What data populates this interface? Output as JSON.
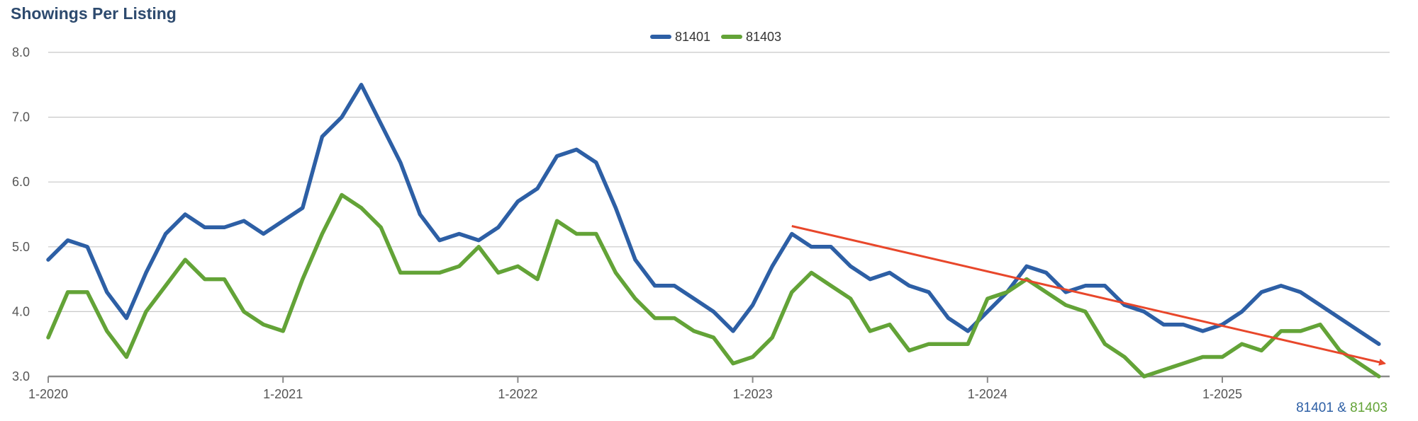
{
  "chart_data": {
    "type": "line",
    "title": "Showings Per Listing",
    "xlabel": "",
    "ylabel": "",
    "ylim": [
      3.0,
      8.0
    ],
    "yticks": [
      "3.0",
      "4.0",
      "5.0",
      "6.0",
      "7.0",
      "8.0"
    ],
    "xticks": [
      "1-2020",
      "1-2021",
      "1-2022",
      "1-2023",
      "1-2024",
      "1-2025"
    ],
    "xrange_months": [
      0,
      68
    ],
    "grid": true,
    "legend_position": "top-center",
    "series": [
      {
        "name": "81401",
        "color": "#2d5fa5",
        "values": [
          4.8,
          5.1,
          5.0,
          4.3,
          3.9,
          4.6,
          5.2,
          5.5,
          5.3,
          5.3,
          5.4,
          5.2,
          5.4,
          5.6,
          6.7,
          7.0,
          7.5,
          6.9,
          6.3,
          5.5,
          5.1,
          5.2,
          5.1,
          5.3,
          5.7,
          5.9,
          6.4,
          6.5,
          6.3,
          5.6,
          4.8,
          4.4,
          4.4,
          4.2,
          4.0,
          3.7,
          4.1,
          4.7,
          5.2,
          5.0,
          5.0,
          4.7,
          4.5,
          4.6,
          4.4,
          4.3,
          3.9,
          3.7,
          4.0,
          4.3,
          4.7,
          4.6,
          4.3,
          4.4,
          4.4,
          4.1,
          4.0,
          3.8,
          3.8,
          3.7,
          3.8,
          4.0,
          4.3,
          4.4,
          4.3,
          4.1,
          3.9,
          3.7,
          3.5
        ]
      },
      {
        "name": "81403",
        "color": "#63a337",
        "values": [
          3.6,
          4.3,
          4.3,
          3.7,
          3.3,
          4.0,
          4.4,
          4.8,
          4.5,
          4.5,
          4.0,
          3.8,
          3.7,
          4.5,
          5.2,
          5.8,
          5.6,
          5.3,
          4.6,
          4.6,
          4.6,
          4.7,
          5.0,
          4.6,
          4.7,
          4.5,
          5.4,
          5.2,
          5.2,
          4.6,
          4.2,
          3.9,
          3.9,
          3.7,
          3.6,
          3.2,
          3.3,
          3.6,
          4.3,
          4.6,
          4.4,
          4.2,
          3.7,
          3.8,
          3.4,
          3.5,
          3.5,
          3.5,
          4.2,
          4.3,
          4.5,
          4.3,
          4.1,
          4.0,
          3.5,
          3.3,
          3.0,
          3.1,
          3.2,
          3.3,
          3.3,
          3.5,
          3.4,
          3.7,
          3.7,
          3.8,
          3.4,
          3.2,
          3.0
        ]
      }
    ],
    "annotations": [
      {
        "type": "trend-arrow",
        "color": "#e8472b",
        "from": [
          38,
          5.32
        ],
        "to": [
          68.3,
          3.2
        ]
      }
    ],
    "footer": {
      "series1": "81401",
      "separator": " & ",
      "series2": "81403"
    }
  }
}
